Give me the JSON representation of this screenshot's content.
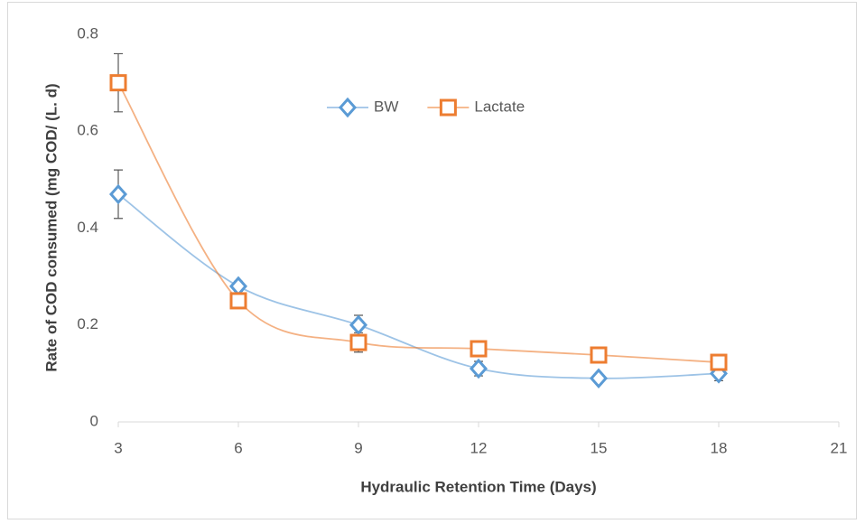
{
  "chart_data": {
    "type": "line",
    "x_label": "Hydraulic Retention Time (Days)",
    "y_label": "Rate of COD consumed (mg COD/ (L. d)",
    "x": [
      3,
      6,
      9,
      12,
      15,
      18
    ],
    "series": [
      {
        "name": "BW",
        "color": "#5b9bd5",
        "marker": "diamond",
        "values": [
          0.47,
          0.28,
          0.2,
          0.11,
          0.09,
          0.1
        ],
        "errors": [
          0.05,
          0.01,
          0.02,
          0.015,
          0.005,
          0.015
        ]
      },
      {
        "name": "Lactate",
        "color": "#ed7d31",
        "marker": "square",
        "values": [
          0.7,
          0.25,
          0.164,
          0.151,
          0.138,
          0.123
        ],
        "errors": [
          0.06,
          0.01,
          0.02,
          0.01,
          0.005,
          0.005
        ]
      }
    ],
    "xlim": [
      3,
      21
    ],
    "xticks": [
      3,
      6,
      9,
      12,
      15,
      18,
      21
    ],
    "ylim": [
      0,
      0.8
    ],
    "yticks": [
      0,
      0.2,
      0.4,
      0.6,
      0.8
    ],
    "smooth": true,
    "grid": false,
    "legend": "top"
  }
}
